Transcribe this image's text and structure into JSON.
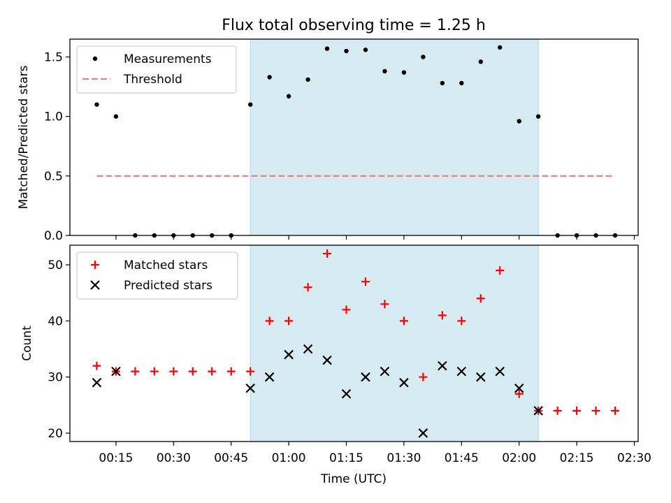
{
  "figure_title": "Flux total observing time = 1.25 h",
  "xlabel": "Time (UTC)",
  "x_tick_labels": [
    "00:15",
    "00:30",
    "00:45",
    "01:00",
    "01:15",
    "01:30",
    "01:45",
    "02:00",
    "02:15",
    "02:30"
  ],
  "colors": {
    "measurements": "#000000",
    "threshold": "#f08080",
    "matched": "#ff0000",
    "predicted": "#000000",
    "shade": "#add8e6"
  },
  "chart_data": [
    {
      "type": "scatter",
      "name": "ratio",
      "ylabel": "Matched/Predicted stars",
      "xlim": [
        "00:03",
        "02:31"
      ],
      "ylim": [
        0,
        1.65
      ],
      "y_ticks": [
        0.0,
        0.5,
        1.0,
        1.5
      ],
      "y_tick_labels": [
        "0.0",
        "0.5",
        "1.0",
        "1.5"
      ],
      "shaded_region": [
        "00:50",
        "02:05"
      ],
      "legend": "top-left",
      "series": [
        {
          "name": "Measurements",
          "marker": "dot",
          "x": [
            "00:10",
            "00:15",
            "00:20",
            "00:25",
            "00:30",
            "00:35",
            "00:40",
            "00:45",
            "00:50",
            "00:55",
            "01:00",
            "01:05",
            "01:10",
            "01:15",
            "01:20",
            "01:25",
            "01:30",
            "01:35",
            "01:40",
            "01:45",
            "01:50",
            "01:55",
            "02:00",
            "02:05",
            "02:10",
            "02:15",
            "02:20",
            "02:25"
          ],
          "y": [
            1.1,
            1.0,
            0,
            0,
            0,
            0,
            0,
            0,
            1.1,
            1.33,
            1.17,
            1.31,
            1.57,
            1.55,
            1.56,
            1.38,
            1.37,
            1.5,
            1.28,
            1.28,
            1.46,
            1.58,
            0.96,
            1.0,
            0,
            0,
            0,
            0
          ]
        },
        {
          "name": "Threshold",
          "marker": "dashed-line",
          "x": [
            "00:10",
            "02:25"
          ],
          "y": [
            0.5,
            0.5
          ]
        }
      ]
    },
    {
      "type": "scatter",
      "name": "counts",
      "ylabel": "Count",
      "xlim": [
        "00:03",
        "02:31"
      ],
      "ylim": [
        18.5,
        53.5
      ],
      "y_ticks": [
        20,
        30,
        40,
        50
      ],
      "y_tick_labels": [
        "20",
        "30",
        "40",
        "50"
      ],
      "shaded_region": [
        "00:50",
        "02:05"
      ],
      "legend": "top-left",
      "series": [
        {
          "name": "Matched stars",
          "marker": "plus",
          "x": [
            "00:10",
            "00:15",
            "00:20",
            "00:25",
            "00:30",
            "00:35",
            "00:40",
            "00:45",
            "00:50",
            "00:55",
            "01:00",
            "01:05",
            "01:10",
            "01:15",
            "01:20",
            "01:25",
            "01:30",
            "01:35",
            "01:40",
            "01:45",
            "01:50",
            "01:55",
            "02:00",
            "02:05",
            "02:10",
            "02:15",
            "02:20",
            "02:25"
          ],
          "y": [
            32,
            31,
            31,
            31,
            31,
            31,
            31,
            31,
            31,
            40,
            40,
            46,
            52,
            42,
            47,
            43,
            40,
            30,
            41,
            40,
            44,
            49,
            27,
            24,
            24,
            24,
            24,
            24
          ]
        },
        {
          "name": "Predicted stars",
          "marker": "x",
          "x": [
            "00:10",
            "00:15",
            "00:50",
            "00:55",
            "01:00",
            "01:05",
            "01:10",
            "01:15",
            "01:20",
            "01:25",
            "01:30",
            "01:35",
            "01:40",
            "01:45",
            "01:50",
            "01:55",
            "02:00",
            "02:05"
          ],
          "y": [
            29,
            31,
            28,
            30,
            34,
            35,
            33,
            27,
            30,
            31,
            29,
            20,
            32,
            31,
            30,
            31,
            28,
            24
          ]
        }
      ]
    }
  ]
}
